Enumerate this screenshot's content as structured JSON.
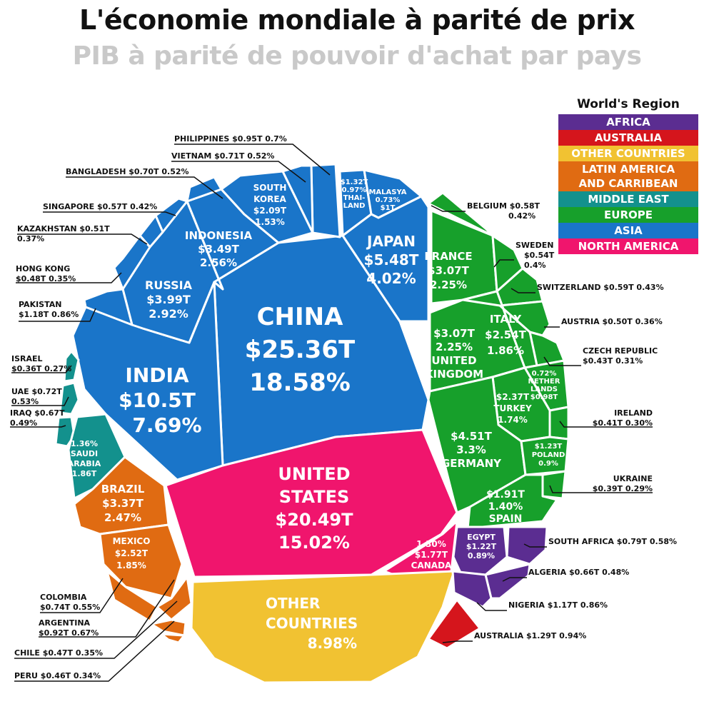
{
  "chart_data": {
    "type": "treemap",
    "title": "L'économie mondiale à parité de prix",
    "subtitle": "PIB à parité de pouvoir d'achat par pays",
    "legend": {
      "title": "World's Region",
      "placement": "top-right",
      "items": [
        {
          "name": "AFRICA",
          "color": "#5b2d91"
        },
        {
          "name": "AUSTRALIA",
          "color": "#d5151c"
        },
        {
          "name": "OTHER COUNTRIES",
          "color": "#f1c232"
        },
        {
          "name": "LATIN AMERICA AND CARRIBEAN",
          "color": "#e06b12"
        },
        {
          "name": "MIDDLE EAST",
          "color": "#13918d"
        },
        {
          "name": "EUROPE",
          "color": "#17a02b"
        },
        {
          "name": "ASIA",
          "color": "#1a75c9"
        },
        {
          "name": "NORTH AMERICA",
          "color": "#f0156d"
        }
      ]
    },
    "inner_labels": [
      {
        "id": "china",
        "lines": [
          "CHINA",
          "$25.36T",
          "18.58%"
        ]
      },
      {
        "id": "india",
        "lines": [
          "INDIA",
          "$10.5T",
          "7.69%"
        ]
      },
      {
        "id": "japan",
        "lines": [
          "JAPAN",
          "$5.48T",
          "4.02%"
        ]
      },
      {
        "id": "russia",
        "lines": [
          "RUSSIA",
          "$3.99T",
          "2.92%"
        ]
      },
      {
        "id": "indonesia",
        "lines": [
          "INDONESIA",
          "$3.49T",
          "2.56%"
        ]
      },
      {
        "id": "south-korea",
        "lines": [
          "SOUTH",
          "KOREA",
          "$2.09T",
          "1.53%"
        ]
      },
      {
        "id": "thailand",
        "lines": [
          "$1.32T",
          "0.97%",
          "THAI-",
          "LAND"
        ]
      },
      {
        "id": "malaysia",
        "lines": [
          "MALASYA",
          "0.73%",
          "$1T"
        ]
      },
      {
        "id": "saudi-arabia",
        "lines": [
          "1.36%",
          "SAUDI",
          "ARABIA",
          "1.86T"
        ]
      },
      {
        "id": "united-states",
        "lines": [
          "UNITED",
          "STATES",
          "$20.49T",
          "15.02%"
        ]
      },
      {
        "id": "canada",
        "lines": [
          "1.30%",
          "$1.77T",
          "CANADA"
        ]
      },
      {
        "id": "brazil",
        "lines": [
          "BRAZIL",
          "$3.37T",
          "2.47%"
        ]
      },
      {
        "id": "mexico",
        "lines": [
          "MEXICO",
          "$2.52T",
          "1.85%"
        ]
      },
      {
        "id": "other-countries",
        "lines": [
          "OTHER",
          "COUNTRIES",
          "8.98%"
        ]
      },
      {
        "id": "france",
        "lines": [
          "FRANCE",
          "$3.07T",
          "2.25%"
        ]
      },
      {
        "id": "united-kingdom",
        "lines": [
          "$3.07T",
          "2.25%",
          "UNITED",
          "KINGDOM"
        ]
      },
      {
        "id": "italy",
        "lines": [
          "ITALY",
          "$2.54T",
          "1.86%"
        ]
      },
      {
        "id": "netherlands",
        "lines": [
          "0.72%",
          "NETHER",
          "LANDS",
          "$0.98T"
        ]
      },
      {
        "id": "turkey",
        "lines": [
          "$2.37T",
          "TURKEY",
          "1.74%"
        ]
      },
      {
        "id": "germany",
        "lines": [
          "$4.51T",
          "3.3%",
          "GERMANY"
        ]
      },
      {
        "id": "poland",
        "lines": [
          "$1.23T",
          "POLAND",
          "0.9%"
        ]
      },
      {
        "id": "spain",
        "lines": [
          "$1.91T",
          "1.40%",
          "SPAIN"
        ]
      },
      {
        "id": "egypt",
        "lines": [
          "EGYPT",
          "$1.22T",
          "0.89%"
        ]
      }
    ],
    "callouts": [
      {
        "id": "philippines",
        "lines": [
          "PHILIPPINES $0.95T  0.7%"
        ]
      },
      {
        "id": "vietnam",
        "lines": [
          "VIETNAM $0.71T  0.52%"
        ]
      },
      {
        "id": "bangladesh",
        "lines": [
          "BANGLADESH $0.70T  0.52%"
        ]
      },
      {
        "id": "singapore",
        "lines": [
          "SINGAPORE $0.57T  0.42%"
        ]
      },
      {
        "id": "kazakhstan",
        "lines": [
          "KAZAKHSTAN $0.51T",
          "0.37%"
        ]
      },
      {
        "id": "hong-kong",
        "lines": [
          "HONG KONG",
          "$0.48T  0.35%"
        ]
      },
      {
        "id": "pakistan",
        "lines": [
          "PAKISTAN",
          "$1.18T  0.86%"
        ]
      },
      {
        "id": "israel",
        "lines": [
          "ISRAEL",
          "$0.36T  0.27%"
        ]
      },
      {
        "id": "uae",
        "lines": [
          "UAE $0.72T",
          "0.53%"
        ]
      },
      {
        "id": "iraq",
        "lines": [
          "IRAQ $0.67T",
          "0.49%"
        ]
      },
      {
        "id": "colombia",
        "lines": [
          "COLOMBIA",
          "$0.74T  0.55%"
        ]
      },
      {
        "id": "argentina",
        "lines": [
          "ARGENTINA",
          "$0.92T  0.67%"
        ]
      },
      {
        "id": "chile",
        "lines": [
          "CHILE $0.47T  0.35%"
        ]
      },
      {
        "id": "peru",
        "lines": [
          "PERU $0.46T  0.34%"
        ]
      },
      {
        "id": "belgium",
        "lines": [
          "BELGIUM  $0.58T",
          "0.42%"
        ]
      },
      {
        "id": "sweden",
        "lines": [
          "SWEDEN",
          "$0.54T",
          "0.4%"
        ]
      },
      {
        "id": "switzerland",
        "lines": [
          "SWITZERLAND  $0.59T  0.43%"
        ]
      },
      {
        "id": "austria",
        "lines": [
          "AUSTRIA  $0.50T  0.36%"
        ]
      },
      {
        "id": "czech-republic",
        "lines": [
          "CZECH REPUBLIC",
          "$0.43T  0.31%"
        ]
      },
      {
        "id": "ireland",
        "lines": [
          "IRELAND",
          "$0.41T  0.30%"
        ]
      },
      {
        "id": "ukraine",
        "lines": [
          "UKRAINE",
          "$0.39T  0.29%"
        ]
      },
      {
        "id": "south-africa",
        "lines": [
          "SOUTH AFRICA $0.79T  0.58%"
        ]
      },
      {
        "id": "algeria",
        "lines": [
          "ALGERIA  $0.66T  0.48%"
        ]
      },
      {
        "id": "nigeria",
        "lines": [
          "NIGERIA $1.17T  0.86%"
        ]
      },
      {
        "id": "australia",
        "lines": [
          "AUSTRALIA  $1.29T  0.94%"
        ]
      }
    ]
  }
}
